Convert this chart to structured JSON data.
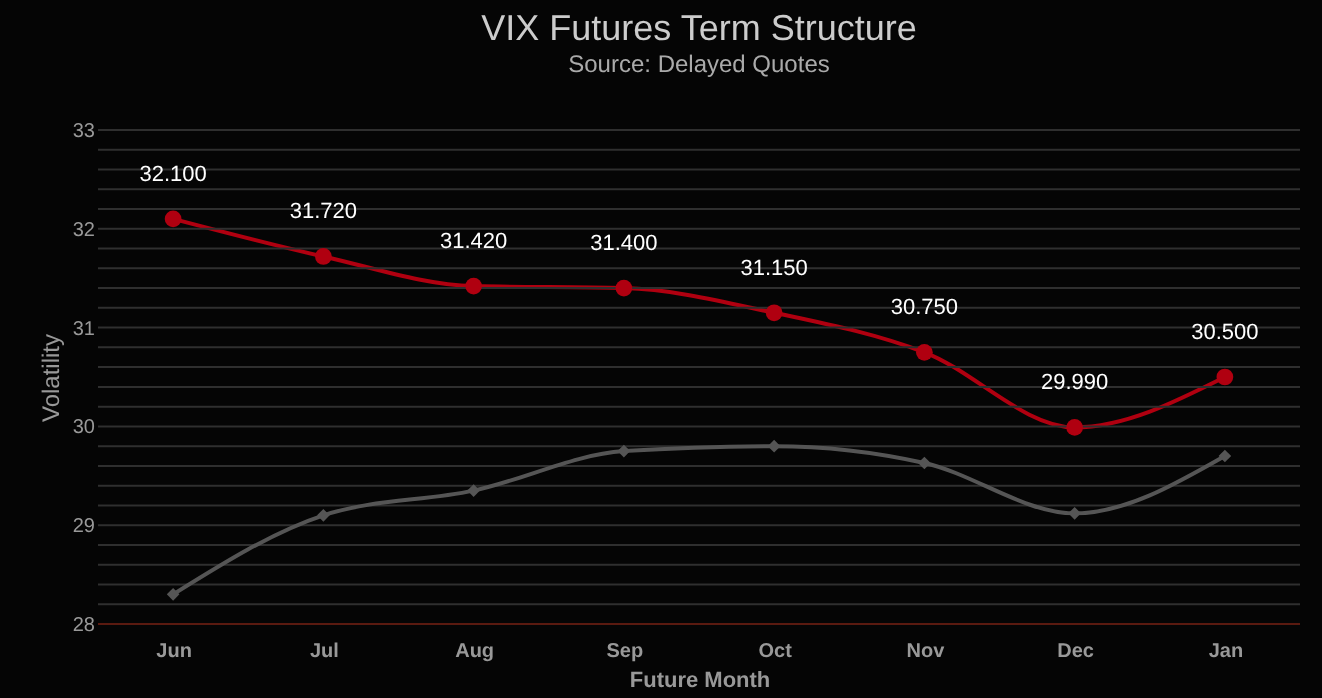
{
  "chart_data": {
    "type": "line",
    "title": "VIX Futures Term Structure",
    "subtitle": "Source: Delayed Quotes",
    "xlabel": "Future Month",
    "ylabel": "Volatility",
    "categories": [
      "Jun",
      "Jul",
      "Aug",
      "Sep",
      "Oct",
      "Nov",
      "Dec",
      "Jan"
    ],
    "series": [
      {
        "color": "#b00010",
        "marker": "circle",
        "values": [
          32.1,
          31.72,
          31.42,
          31.4,
          31.15,
          30.75,
          29.99,
          30.5
        ],
        "value_labels": [
          "32.100",
          "31.720",
          "31.420",
          "31.400",
          "31.150",
          "30.750",
          "29.990",
          "30.500"
        ]
      },
      {
        "color": "#555555",
        "marker": "diamond",
        "values": [
          28.3,
          29.1,
          29.35,
          29.75,
          29.8,
          29.63,
          29.12,
          29.7
        ]
      }
    ],
    "ylim": [
      28,
      33
    ],
    "yticks": [
      28,
      {
        "value": 28.2,
        "label": null
      },
      {
        "value": 28.4,
        "label": null
      },
      {
        "value": 28.6,
        "label": null
      },
      {
        "value": 28.8,
        "label": null
      },
      29,
      {
        "value": 29.2,
        "label": null
      },
      {
        "value": 29.4,
        "label": null
      },
      {
        "value": 29.6,
        "label": null
      },
      {
        "value": 29.8,
        "label": null
      },
      30,
      {
        "value": 30.2,
        "label": null
      },
      {
        "value": 30.4,
        "label": null
      },
      {
        "value": 30.6,
        "label": null
      },
      {
        "value": 30.8,
        "label": null
      },
      31,
      {
        "value": 31.2,
        "label": null
      },
      {
        "value": 31.4,
        "label": null
      },
      {
        "value": 31.6,
        "label": null
      },
      {
        "value": 31.8,
        "label": null
      },
      32,
      {
        "value": 32.2,
        "label": null
      },
      {
        "value": 32.4,
        "label": null
      },
      {
        "value": 32.6,
        "label": null
      },
      {
        "value": 32.8,
        "label": null
      },
      33
    ],
    "grid": "y",
    "line_style": "solid"
  }
}
